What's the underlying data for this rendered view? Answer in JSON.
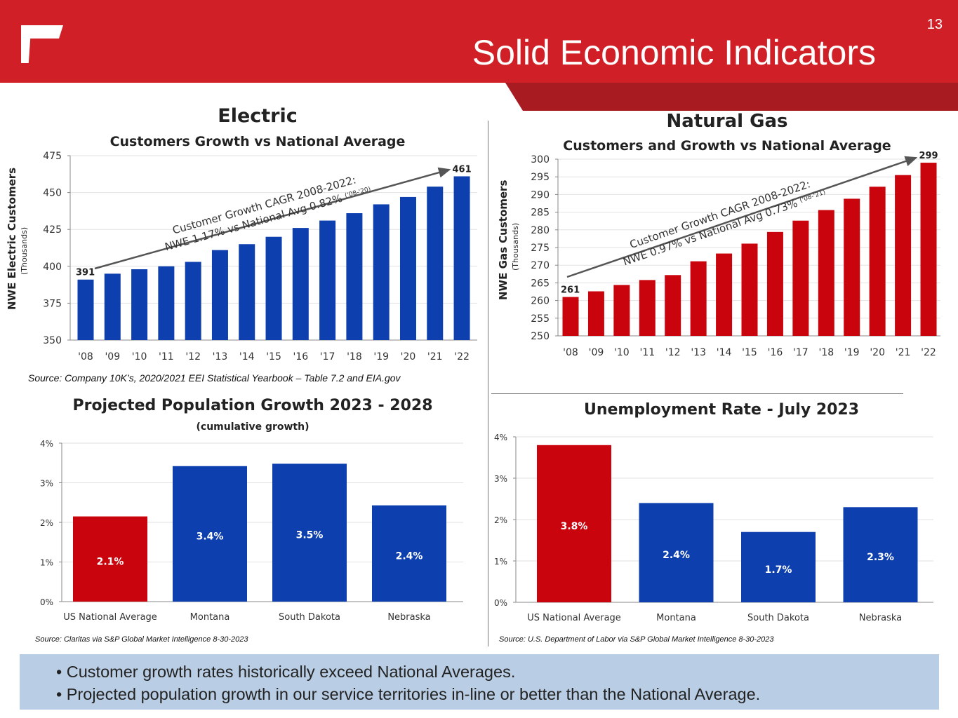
{
  "header": {
    "title": "Solid Economic Indicators",
    "page_number": "13",
    "logo_icon": "corner-bracket-logo"
  },
  "colors": {
    "header_red": "#d01f26",
    "bar_blue": "#0e3fae",
    "bar_red": "#c9040c",
    "bullet_bg": "#b9cde4"
  },
  "bullets": [
    "• Customer growth rates historically exceed National Averages.",
    "• Projected population growth in our service territories in-line or better than the National Average."
  ],
  "chart_data": [
    {
      "type": "bar",
      "title": "Electric",
      "subtitle": "Customers Growth vs National Average",
      "ylabel": "NWE Electric Customers",
      "ylabel_sub": "(Thousands)",
      "categories": [
        "'08",
        "'09",
        "'10",
        "'11",
        "'12",
        "'13",
        "'14",
        "'15",
        "'16",
        "'17",
        "'18",
        "'19",
        "'20",
        "'21",
        "'22"
      ],
      "values": [
        391,
        395,
        398,
        400,
        403,
        411,
        415,
        420,
        426,
        431,
        436,
        442,
        447,
        454,
        461
      ],
      "data_labels": {
        "first": "391",
        "last": "461"
      },
      "ylim": [
        350,
        475
      ],
      "yticks": [
        350,
        375,
        400,
        425,
        450,
        475
      ],
      "color": "#0e3fae",
      "annotation": [
        "Customer Growth CAGR 2008-2022:",
        "NWE 1.17% vs National Avg 0.82%",
        "('08-'20)"
      ],
      "source": "Source:  Company 10K’s, 2020/2021 EEI Statistical Yearbook – Table 7.2 and EIA.gov"
    },
    {
      "type": "bar",
      "title": "Natural Gas",
      "subtitle": "Customers and Growth vs National Average",
      "ylabel": "NWE Gas Customers",
      "ylabel_sub": "(Thousands)",
      "categories": [
        "'08",
        "'09",
        "'10",
        "'11",
        "'12",
        "'13",
        "'14",
        "'15",
        "'16",
        "'17",
        "'18",
        "'19",
        "'20",
        "'21",
        "'22"
      ],
      "values": [
        261,
        262.6,
        264.4,
        265.8,
        267.2,
        271.1,
        273.3,
        276.1,
        279.4,
        282.6,
        285.6,
        288.8,
        292.2,
        295.5,
        299
      ],
      "data_labels": {
        "first": "261",
        "last": "299"
      },
      "ylim": [
        250,
        300
      ],
      "yticks": [
        250,
        255,
        260,
        265,
        270,
        275,
        280,
        285,
        290,
        295,
        300
      ],
      "color": "#c9040c",
      "annotation": [
        "Customer Growth CAGR 2008-2022:",
        "NWE 0.97% vs National Avg 0.73%",
        "('08-'21)"
      ]
    },
    {
      "type": "bar",
      "title": "Projected Population Growth 2023 - 2028",
      "subtitle": "(cumulative growth)",
      "categories": [
        "US National Average",
        "Montana",
        "South Dakota",
        "Nebraska"
      ],
      "values": [
        2.15,
        3.42,
        3.48,
        2.43
      ],
      "data_labels": [
        "2.1%",
        "3.4%",
        "3.5%",
        "2.4%"
      ],
      "colors": [
        "#c9040c",
        "#0e3fae",
        "#0e3fae",
        "#0e3fae"
      ],
      "ylim": [
        0,
        4
      ],
      "yticks": [
        "0%",
        "1%",
        "2%",
        "3%",
        "4%"
      ],
      "source": "Source:  Claritas via S&P Global Market Intelligence 8-30-2023"
    },
    {
      "type": "bar",
      "title": "Unemployment Rate - July 2023",
      "categories": [
        "US National Average",
        "Montana",
        "South Dakota",
        "Nebraska"
      ],
      "values": [
        3.8,
        2.4,
        1.7,
        2.3
      ],
      "data_labels": [
        "3.8%",
        "2.4%",
        "1.7%",
        "2.3%"
      ],
      "colors": [
        "#c9040c",
        "#0e3fae",
        "#0e3fae",
        "#0e3fae"
      ],
      "ylim": [
        0,
        4
      ],
      "yticks": [
        "0%",
        "1%",
        "2%",
        "3%",
        "4%"
      ],
      "source": "Source:  U.S. Department of Labor via S&P Global Market Intelligence 8-30-2023"
    }
  ]
}
